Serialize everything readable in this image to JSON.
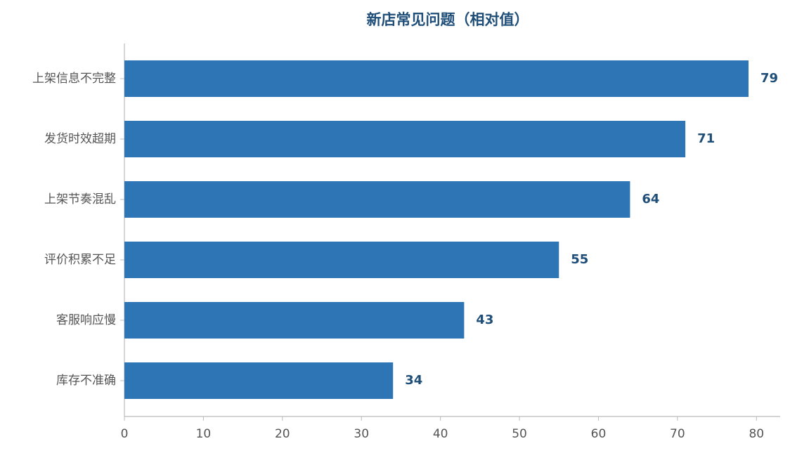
{
  "chart_data": {
    "type": "bar",
    "orientation": "horizontal",
    "title": "新店常见问题（相对值）",
    "categories": [
      "上架信息不完整",
      "发货时效超期",
      "上架节奏混乱",
      "评价积累不足",
      "客服响应慢",
      "库存不准确"
    ],
    "values": [
      79,
      71,
      64,
      55,
      43,
      34
    ],
    "color": "#2e75b6",
    "label_color": "#1f4e79",
    "xlim": [
      0,
      83
    ],
    "xticks": [
      0,
      10,
      20,
      30,
      40,
      50,
      60,
      70,
      80
    ],
    "grid": false
  }
}
